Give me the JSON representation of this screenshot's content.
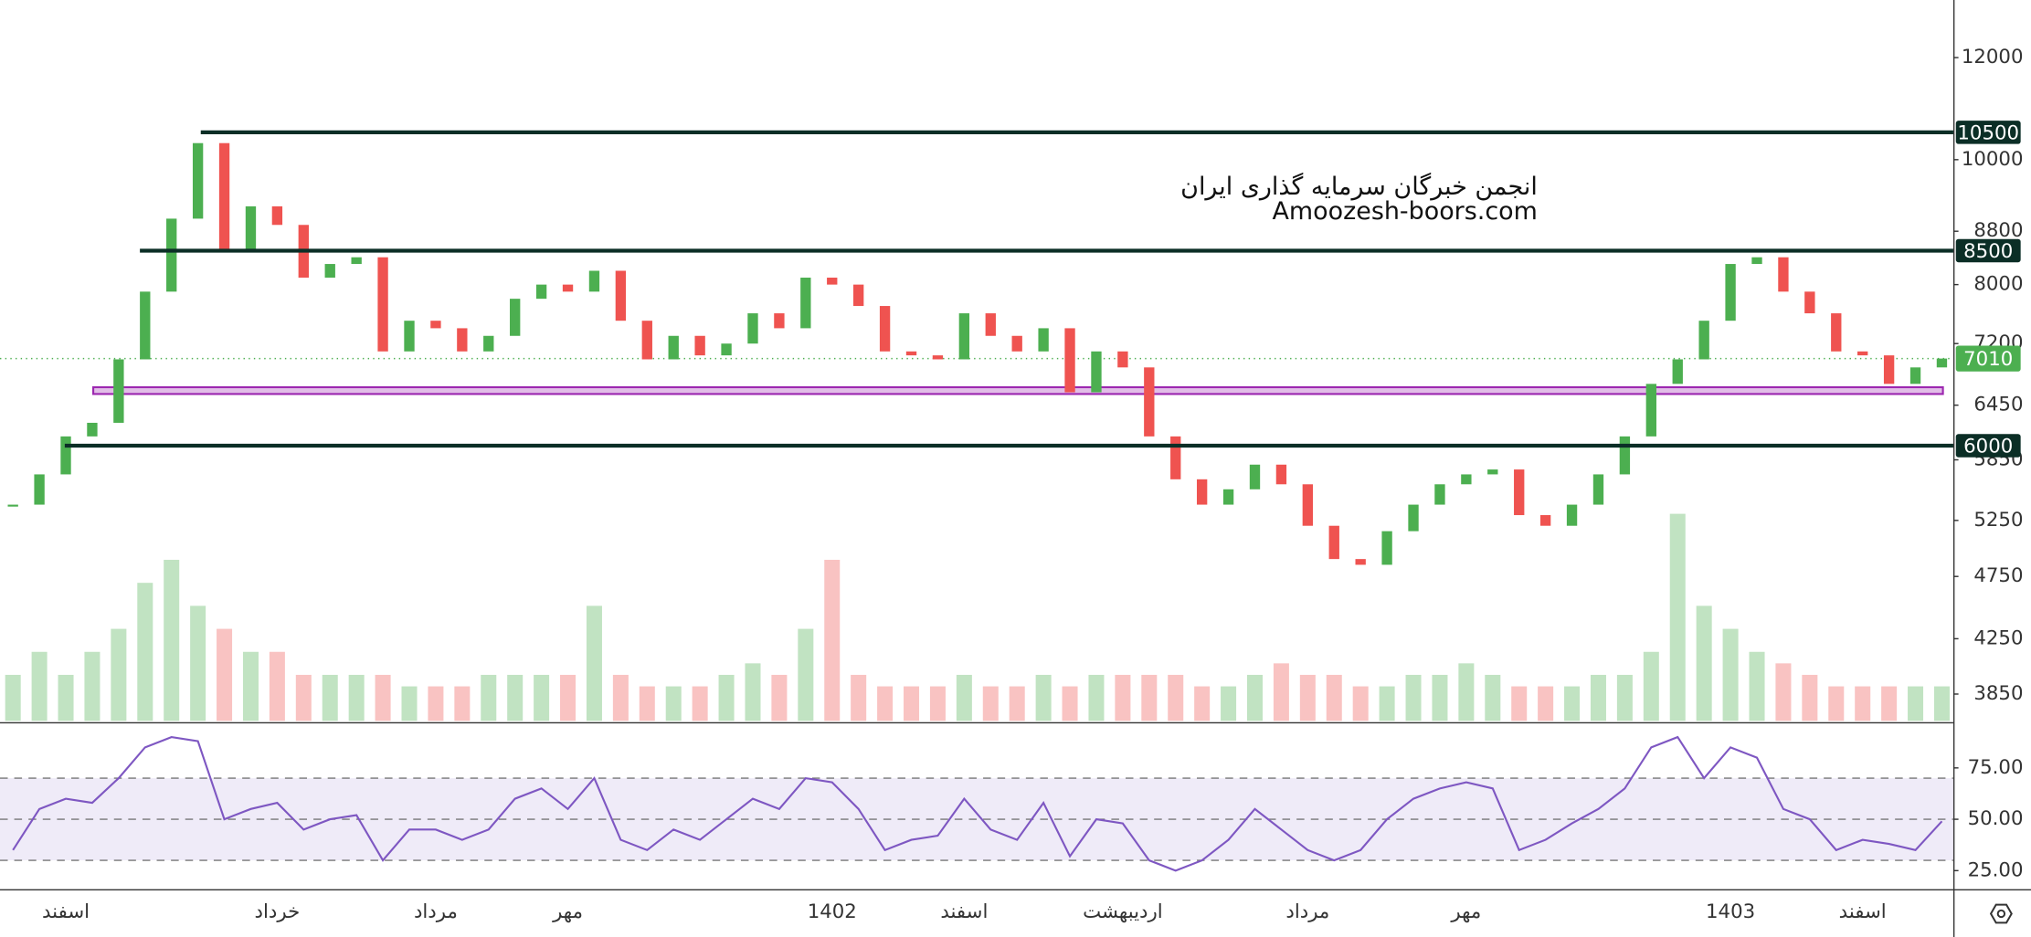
{
  "chart_data": {
    "type": "candlestick",
    "watermark": [
      "انجمن خبرگان سرمایه گذاری ایران",
      "Amoozesh-boors.com"
    ],
    "categories": [
      null,
      null,
      "اسفند",
      null,
      null,
      null,
      null,
      null,
      null,
      null,
      "خرداد",
      null,
      null,
      null,
      null,
      null,
      "مرداد",
      null,
      null,
      null,
      null,
      "مهر",
      null,
      null,
      null,
      null,
      null,
      null,
      null,
      null,
      null,
      "1402",
      null,
      null,
      null,
      null,
      "اسفند",
      null,
      null,
      null,
      null,
      null,
      "اردیبهشت",
      null,
      null,
      null,
      null,
      null,
      null,
      "مرداد",
      null,
      null,
      null,
      null,
      null,
      "مهر",
      null,
      null,
      null,
      null,
      null,
      null,
      null,
      null,
      null,
      "1403",
      null,
      null,
      null,
      null,
      "اسفند",
      null,
      null,
      null
    ],
    "values": [
      5400,
      5700,
      6100,
      6250,
      7000,
      7900,
      9000,
      10300,
      8500,
      9200,
      8900,
      8100,
      8300,
      8400,
      7100,
      7500,
      7400,
      7100,
      7300,
      7800,
      8000,
      7900,
      8200,
      7500,
      7000,
      7300,
      7050,
      7200,
      7600,
      7400,
      8100,
      8000,
      7700,
      7100,
      7050,
      7000,
      7600,
      7300,
      7100,
      7400,
      6600,
      7100,
      6900,
      6100,
      5650,
      5400,
      5550,
      5800,
      5600,
      5200,
      4900,
      4850,
      5150,
      5400,
      5600,
      5700,
      5750,
      5300,
      5200,
      5400,
      5700,
      6100,
      6700,
      7000,
      7500,
      8300,
      8400,
      7900,
      7600,
      7100,
      7050,
      6700,
      6900,
      7010
    ],
    "volume": [
      2,
      3,
      2,
      3,
      4,
      6,
      7,
      5,
      4,
      3,
      3,
      2,
      2,
      2,
      2,
      1.5,
      1.5,
      1.5,
      2,
      2,
      2,
      2,
      5,
      2,
      1.5,
      1.5,
      1.5,
      2,
      2.5,
      2,
      4,
      7,
      2,
      1.5,
      1.5,
      1.5,
      2,
      1.5,
      1.5,
      2,
      1.5,
      2,
      2,
      2,
      2,
      1.5,
      1.5,
      2,
      2.5,
      2,
      2,
      1.5,
      1.5,
      2,
      2,
      2.5,
      2,
      1.5,
      1.5,
      1.5,
      2,
      2,
      3,
      9,
      5,
      4,
      3,
      2.5,
      2,
      1.5,
      1.5,
      1.5,
      1.5,
      1.5
    ],
    "up_color": "#4caf50",
    "down_color": "#ef5350",
    "log": true,
    "ylim": [
      3670,
      13300
    ],
    "yticks": [
      3850,
      4250,
      4750,
      5250,
      5850,
      6450,
      7200,
      8000,
      8800,
      10000,
      12000
    ],
    "levels": [
      10500,
      8500,
      6000
    ],
    "level_color": "#0b2e26",
    "last_price": 7010,
    "last_color": "#4caf50",
    "zone": [
      6580,
      6660
    ],
    "zone_color": "#9c27b0",
    "rsi": {
      "type": "line",
      "color": "#7e57c2",
      "values": [
        35,
        55,
        60,
        58,
        70,
        85,
        90,
        88,
        50,
        55,
        58,
        45,
        50,
        52,
        30,
        45,
        45,
        40,
        45,
        60,
        65,
        55,
        70,
        40,
        35,
        45,
        40,
        50,
        60,
        55,
        70,
        68,
        55,
        35,
        40,
        42,
        60,
        45,
        40,
        58,
        32,
        50,
        48,
        30,
        25,
        30,
        40,
        55,
        45,
        35,
        30,
        35,
        50,
        60,
        65,
        68,
        65,
        35,
        40,
        48,
        55,
        65,
        85,
        90,
        70,
        85,
        80,
        55,
        50,
        35,
        40,
        38,
        35,
        49
      ],
      "ylim": [
        16,
        96
      ],
      "bands": [
        30,
        70
      ],
      "yticks": [
        {
          "value": 25,
          "label": "25.00"
        },
        {
          "value": 50,
          "label": "50.00"
        },
        {
          "value": 75,
          "label": "75.00"
        }
      ]
    }
  }
}
